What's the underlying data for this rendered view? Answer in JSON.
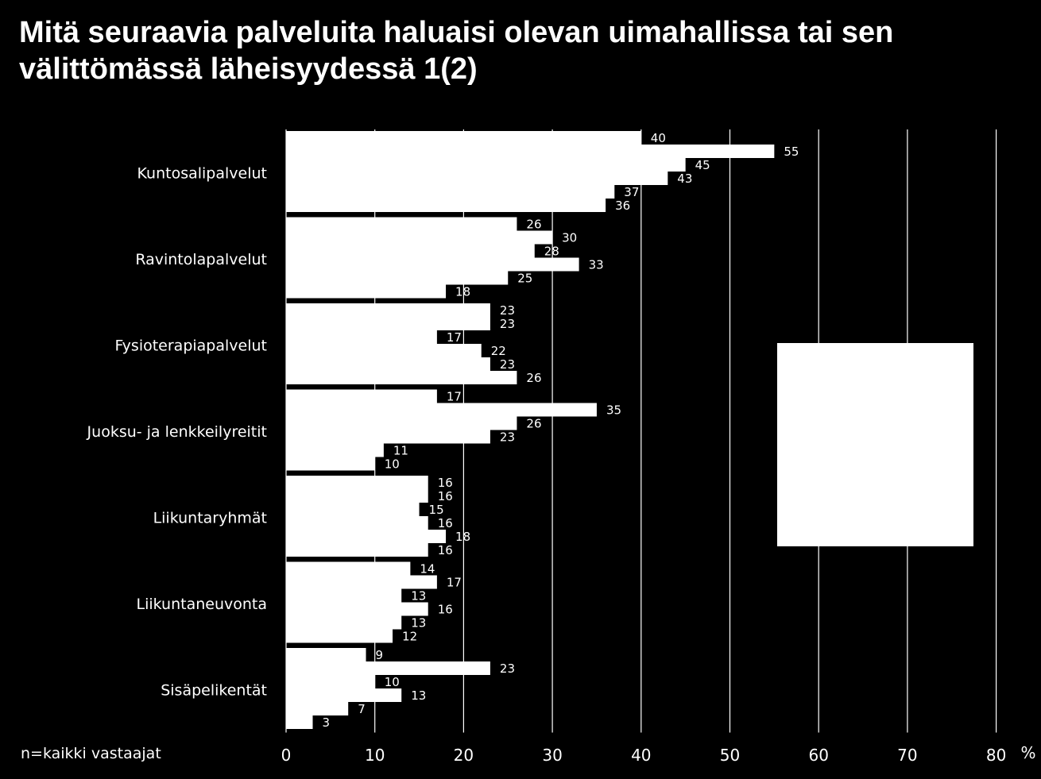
{
  "title": "Mitä seuraavia palveluita haluaisi olevan uimahallissa tai sen välittömässä läheisyydessä 1(2)",
  "note": "n=kaikki vastaajat",
  "colors": {
    "background": "#000000",
    "bar": "#ffffff",
    "grid": "#ffffff",
    "text": "#ffffff"
  },
  "chart_data": {
    "type": "bar",
    "orientation": "horizontal",
    "categories": [
      "Kuntosalipalvelut",
      "Ravintolapalvelut",
      "Fysioterapiapalvelut",
      "Juoksu- ja lenkkeilyreitit",
      "Liikuntaryhmät",
      "Liikuntaneuvonta",
      "Sisäpelikentät"
    ],
    "series": [
      {
        "values": [
          40,
          26,
          23,
          17,
          16,
          14,
          9
        ]
      },
      {
        "values": [
          55,
          30,
          23,
          35,
          16,
          17,
          23
        ]
      },
      {
        "values": [
          45,
          28,
          17,
          26,
          15,
          13,
          10
        ]
      },
      {
        "values": [
          43,
          33,
          22,
          23,
          16,
          16,
          13
        ]
      },
      {
        "values": [
          37,
          25,
          23,
          11,
          18,
          13,
          7
        ]
      },
      {
        "values": [
          36,
          18,
          26,
          10,
          16,
          12,
          3
        ]
      }
    ],
    "xlim": [
      0,
      80
    ],
    "xticks": [
      "0",
      "10",
      "20",
      "30",
      "40",
      "50",
      "60",
      "70",
      "80"
    ],
    "xlabel": "%",
    "grid": true,
    "legend": "right"
  }
}
